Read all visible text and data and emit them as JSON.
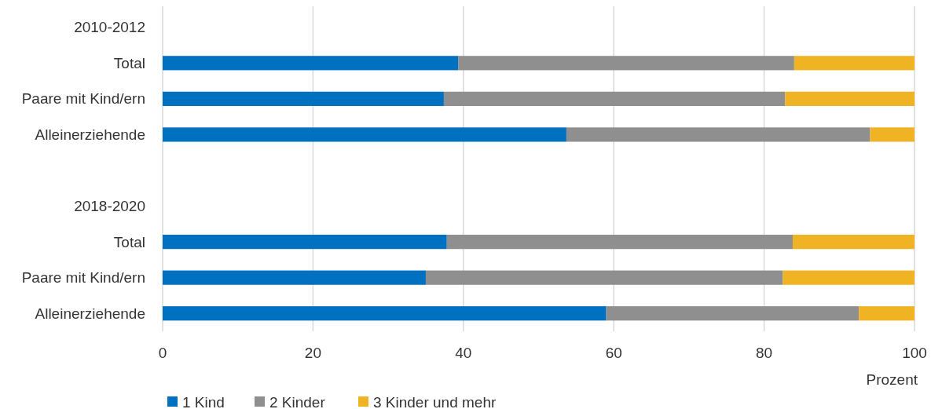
{
  "chart_data": {
    "type": "bar",
    "orientation": "horizontal",
    "stacked": true,
    "categories": [
      "2010-2012",
      "Total",
      "Paare mit Kind/ern",
      "Alleinerziehende",
      null,
      "2018-2020",
      "Total",
      "Paare mit Kind/ern",
      "Alleinerziehende"
    ],
    "series": [
      {
        "name": "1 Kind",
        "color": "#0070c0",
        "values": [
          null,
          39.3,
          37.4,
          53.7,
          null,
          null,
          37.8,
          35.0,
          59.0
        ]
      },
      {
        "name": "2 Kinder",
        "color": "#8f8f8f",
        "values": [
          null,
          44.7,
          45.4,
          40.4,
          null,
          null,
          46.0,
          47.5,
          33.6
        ]
      },
      {
        "name": "3 Kinder und mehr",
        "color": "#f0b323",
        "values": [
          null,
          16.0,
          17.2,
          5.9,
          null,
          null,
          16.2,
          17.5,
          7.4
        ]
      }
    ],
    "xlim": [
      0,
      100
    ],
    "xticks": [
      0,
      20,
      40,
      60,
      80,
      100
    ],
    "xlabel": "Prozent",
    "grid": "x",
    "legend": "bottom left"
  }
}
